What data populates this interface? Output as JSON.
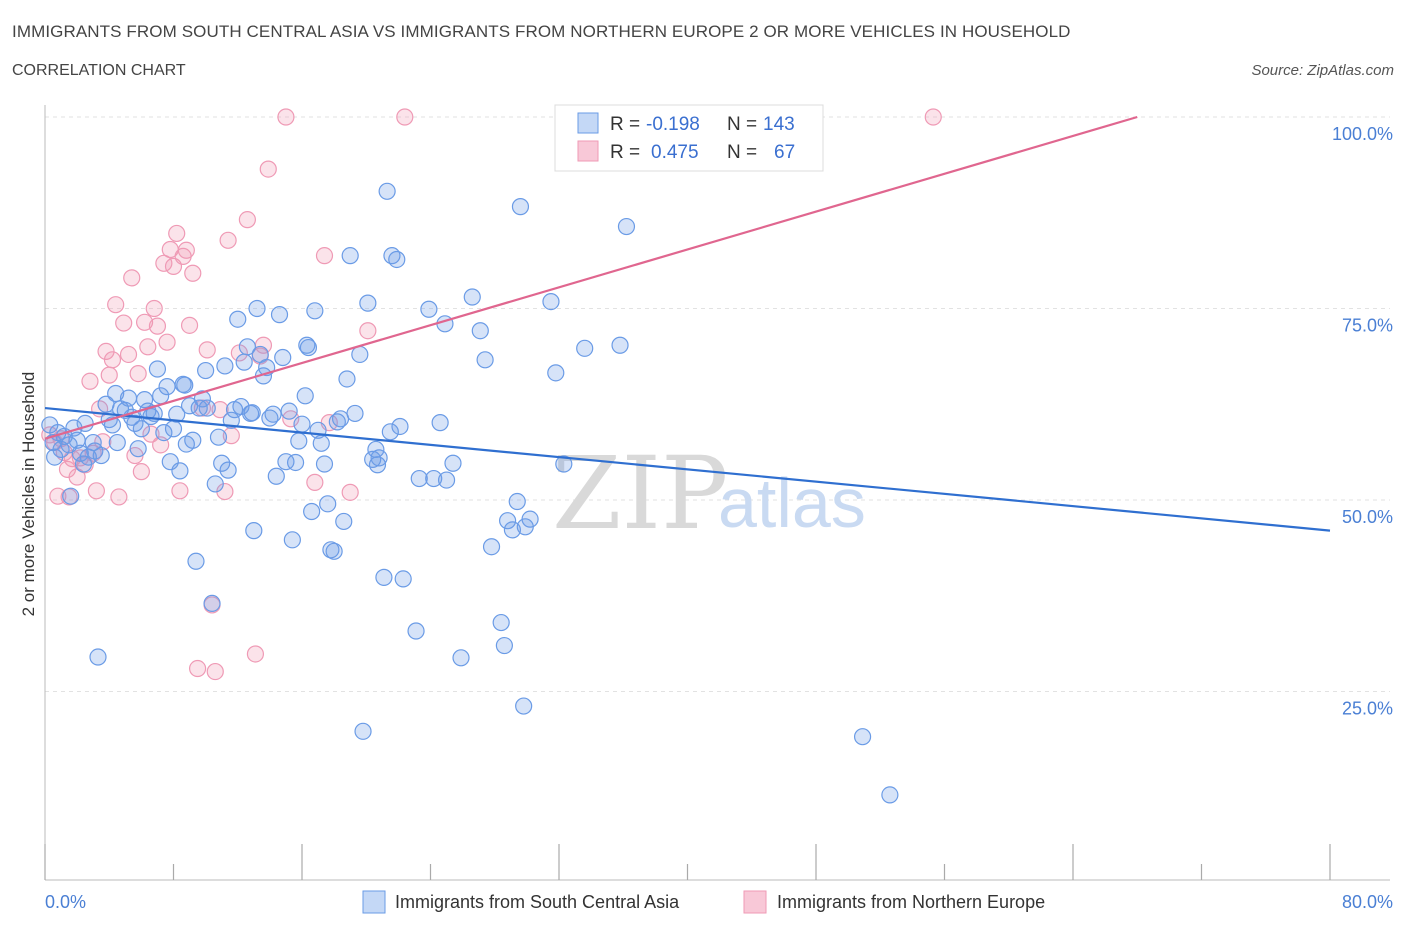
{
  "header": {
    "title": "IMMIGRANTS FROM SOUTH CENTRAL ASIA VS IMMIGRANTS FROM NORTHERN EUROPE 2 OR MORE VEHICLES IN HOUSEHOLD",
    "subtitle": "CORRELATION CHART",
    "source": "Source: ZipAtlas.com"
  },
  "stats": {
    "blue": {
      "r_label": "R =",
      "r_value": "-0.198",
      "n_label": "N =",
      "n_value": "143"
    },
    "pink": {
      "r_label": "R =",
      "r_value": "0.475",
      "n_label": "N =",
      "n_value": "67"
    }
  },
  "watermark": {
    "zip": "ZIP",
    "atlas": "atlas"
  },
  "colors": {
    "blue": "#6a9be6",
    "blue_line": "#2f6fd0",
    "pink": "#ef9ab5",
    "pink_line": "#e0668f"
  },
  "chart_data": {
    "type": "scatter",
    "title": "IMMIGRANTS FROM SOUTH CENTRAL ASIA VS IMMIGRANTS FROM NORTHERN EUROPE 2 OR MORE VEHICLES IN HOUSEHOLD",
    "ylabel": "2 or more Vehicles in Household",
    "xlabel": "",
    "xlim": [
      0,
      80
    ],
    "ylim": [
      0,
      100
    ],
    "x_tick_labels": {
      "min": "0.0%",
      "max": "80.0%"
    },
    "y_ticks": [
      {
        "v": 25,
        "label": "25.0%"
      },
      {
        "v": 50,
        "label": "50.0%"
      },
      {
        "v": 75,
        "label": "75.0%"
      },
      {
        "v": 100,
        "label": "100.0%"
      }
    ],
    "grid": true,
    "legend_position": "bottom",
    "series": [
      {
        "name": "Immigrants from South Central Asia",
        "color": "#6a9be6",
        "trend": {
          "x": [
            0,
            80
          ],
          "y": [
            62.0,
            46.0
          ]
        },
        "points": [
          [
            0.3,
            59.8
          ],
          [
            0.5,
            57.5
          ],
          [
            0.6,
            55.6
          ],
          [
            0.8,
            58.8
          ],
          [
            1.0,
            56.6
          ],
          [
            1.2,
            58.3
          ],
          [
            1.5,
            57.2
          ],
          [
            1.6,
            50.5
          ],
          [
            1.8,
            59.4
          ],
          [
            2.0,
            57.8
          ],
          [
            2.2,
            56.1
          ],
          [
            2.4,
            54.7
          ],
          [
            2.5,
            60.0
          ],
          [
            2.7,
            55.6
          ],
          [
            3.0,
            57.5
          ],
          [
            3.1,
            56.4
          ],
          [
            3.3,
            29.5
          ],
          [
            3.5,
            55.8
          ],
          [
            3.8,
            62.5
          ],
          [
            4.0,
            60.5
          ],
          [
            4.2,
            59.8
          ],
          [
            4.4,
            63.9
          ],
          [
            4.5,
            57.5
          ],
          [
            4.7,
            61.9
          ],
          [
            5.0,
            61.7
          ],
          [
            5.2,
            63.3
          ],
          [
            5.4,
            60.8
          ],
          [
            5.6,
            60.0
          ],
          [
            5.8,
            56.7
          ],
          [
            6.0,
            59.3
          ],
          [
            6.2,
            63.1
          ],
          [
            6.4,
            61.6
          ],
          [
            6.6,
            60.9
          ],
          [
            6.8,
            61.3
          ],
          [
            7.0,
            67.1
          ],
          [
            7.2,
            63.6
          ],
          [
            7.4,
            58.8
          ],
          [
            7.6,
            64.8
          ],
          [
            7.8,
            55.0
          ],
          [
            8.0,
            59.3
          ],
          [
            8.2,
            61.2
          ],
          [
            8.4,
            53.8
          ],
          [
            8.6,
            65.1
          ],
          [
            8.8,
            57.3
          ],
          [
            9.0,
            62.3
          ],
          [
            9.2,
            57.8
          ],
          [
            9.4,
            42.0
          ],
          [
            9.6,
            62.0
          ],
          [
            9.8,
            63.2
          ],
          [
            10.0,
            66.9
          ],
          [
            10.1,
            62.0
          ],
          [
            10.4,
            36.5
          ],
          [
            10.6,
            52.1
          ],
          [
            10.8,
            58.2
          ],
          [
            11.0,
            54.8
          ],
          [
            11.2,
            67.5
          ],
          [
            11.4,
            53.9
          ],
          [
            11.6,
            60.4
          ],
          [
            11.8,
            61.8
          ],
          [
            12.0,
            73.6
          ],
          [
            12.2,
            62.2
          ],
          [
            12.4,
            68.0
          ],
          [
            12.6,
            70.0
          ],
          [
            12.8,
            61.3
          ],
          [
            13.0,
            46.0
          ],
          [
            13.2,
            75.0
          ],
          [
            13.4,
            69.0
          ],
          [
            13.6,
            66.2
          ],
          [
            13.8,
            67.3
          ],
          [
            14.0,
            60.7
          ],
          [
            14.2,
            61.2
          ],
          [
            14.4,
            53.1
          ],
          [
            14.6,
            74.2
          ],
          [
            14.8,
            68.6
          ],
          [
            15.0,
            55.0
          ],
          [
            15.2,
            61.6
          ],
          [
            15.4,
            44.8
          ],
          [
            15.6,
            54.9
          ],
          [
            15.8,
            57.7
          ],
          [
            16.0,
            59.9
          ],
          [
            16.2,
            63.6
          ],
          [
            16.4,
            69.9
          ],
          [
            16.6,
            48.5
          ],
          [
            16.8,
            74.7
          ],
          [
            17.0,
            59.1
          ],
          [
            17.2,
            57.4
          ],
          [
            17.4,
            54.7
          ],
          [
            17.6,
            49.5
          ],
          [
            17.8,
            43.5
          ],
          [
            18.0,
            43.3
          ],
          [
            18.2,
            60.2
          ],
          [
            18.4,
            60.6
          ],
          [
            18.6,
            47.2
          ],
          [
            18.8,
            65.8
          ],
          [
            19.0,
            81.9
          ],
          [
            19.3,
            61.3
          ],
          [
            19.6,
            69.0
          ],
          [
            19.8,
            19.8
          ],
          [
            20.1,
            75.7
          ],
          [
            20.4,
            55.3
          ],
          [
            20.6,
            56.6
          ],
          [
            20.8,
            55.5
          ],
          [
            21.1,
            39.9
          ],
          [
            21.3,
            90.3
          ],
          [
            21.6,
            81.9
          ],
          [
            21.9,
            81.4
          ],
          [
            22.1,
            59.6
          ],
          [
            22.3,
            39.7
          ],
          [
            23.1,
            32.9
          ],
          [
            23.3,
            52.8
          ],
          [
            23.9,
            74.9
          ],
          [
            24.2,
            52.8
          ],
          [
            24.6,
            60.1
          ],
          [
            24.9,
            73.0
          ],
          [
            25.4,
            54.8
          ],
          [
            25.9,
            29.4
          ],
          [
            26.6,
            76.5
          ],
          [
            27.1,
            72.1
          ],
          [
            27.4,
            68.3
          ],
          [
            27.8,
            43.9
          ],
          [
            28.4,
            34.0
          ],
          [
            28.6,
            31.0
          ],
          [
            28.8,
            47.3
          ],
          [
            29.1,
            46.1
          ],
          [
            29.4,
            49.8
          ],
          [
            29.6,
            88.3
          ],
          [
            29.8,
            23.1
          ],
          [
            30.2,
            47.5
          ],
          [
            31.5,
            75.9
          ],
          [
            31.8,
            66.6
          ],
          [
            32.3,
            54.7
          ],
          [
            33.6,
            69.8
          ],
          [
            35.8,
            70.2
          ],
          [
            36.2,
            85.7
          ],
          [
            50.9,
            19.1
          ],
          [
            52.6,
            11.5
          ],
          [
            8.7,
            65.0
          ],
          [
            12.9,
            61.4
          ],
          [
            16.3,
            70.2
          ],
          [
            20.7,
            54.6
          ],
          [
            25.0,
            52.6
          ],
          [
            29.9,
            46.5
          ],
          [
            21.5,
            58.9
          ]
        ]
      },
      {
        "name": "Immigrants from Northern Europe",
        "color": "#ef9ab5",
        "trend": {
          "x": [
            0,
            68
          ],
          "y": [
            58.0,
            100.0
          ]
        },
        "points": [
          [
            0.3,
            58.5
          ],
          [
            0.6,
            57.5
          ],
          [
            0.8,
            50.5
          ],
          [
            1.0,
            58.0
          ],
          [
            1.2,
            56.2
          ],
          [
            1.4,
            54.0
          ],
          [
            1.5,
            50.4
          ],
          [
            1.7,
            55.4
          ],
          [
            2.0,
            53.0
          ],
          [
            2.2,
            55.5
          ],
          [
            2.5,
            54.6
          ],
          [
            2.8,
            65.5
          ],
          [
            3.0,
            56.1
          ],
          [
            3.2,
            51.2
          ],
          [
            3.4,
            61.9
          ],
          [
            3.6,
            57.6
          ],
          [
            3.8,
            69.4
          ],
          [
            4.0,
            66.3
          ],
          [
            4.2,
            68.3
          ],
          [
            4.4,
            75.5
          ],
          [
            4.6,
            50.4
          ],
          [
            4.9,
            73.1
          ],
          [
            5.2,
            69.0
          ],
          [
            5.4,
            79.0
          ],
          [
            5.6,
            55.8
          ],
          [
            5.8,
            66.5
          ],
          [
            6.0,
            53.7
          ],
          [
            6.2,
            73.2
          ],
          [
            6.4,
            70.0
          ],
          [
            6.6,
            58.6
          ],
          [
            6.8,
            75.0
          ],
          [
            7.0,
            72.7
          ],
          [
            7.2,
            57.2
          ],
          [
            7.4,
            80.9
          ],
          [
            7.6,
            70.6
          ],
          [
            7.8,
            82.7
          ],
          [
            8.0,
            80.5
          ],
          [
            8.2,
            84.8
          ],
          [
            8.4,
            51.2
          ],
          [
            8.6,
            81.8
          ],
          [
            8.8,
            82.6
          ],
          [
            9.0,
            72.8
          ],
          [
            9.2,
            79.6
          ],
          [
            9.5,
            28.0
          ],
          [
            9.8,
            62.0
          ],
          [
            10.1,
            69.6
          ],
          [
            10.4,
            36.3
          ],
          [
            10.6,
            27.6
          ],
          [
            10.9,
            61.8
          ],
          [
            11.2,
            51.1
          ],
          [
            11.4,
            83.9
          ],
          [
            11.6,
            58.4
          ],
          [
            12.1,
            69.2
          ],
          [
            12.6,
            86.6
          ],
          [
            13.1,
            29.9
          ],
          [
            13.4,
            68.8
          ],
          [
            13.6,
            70.2
          ],
          [
            13.9,
            93.2
          ],
          [
            15.0,
            100.0
          ],
          [
            15.3,
            60.6
          ],
          [
            16.8,
            52.3
          ],
          [
            17.4,
            81.9
          ],
          [
            17.7,
            60.1
          ],
          [
            19.0,
            51.0
          ],
          [
            20.1,
            72.1
          ],
          [
            22.4,
            100.0
          ],
          [
            55.3,
            100.0
          ]
        ]
      }
    ]
  },
  "legend": {
    "blue_label": "Immigrants from South Central Asia",
    "pink_label": "Immigrants from Northern Europe"
  }
}
